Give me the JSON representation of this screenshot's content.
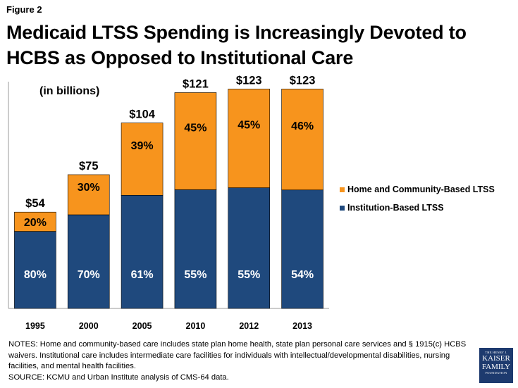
{
  "figure_label": "Figure 2",
  "title": "Medicaid LTSS Spending is Increasingly Devoted to HCBS as Opposed to Institutional Care",
  "colors": {
    "hcbs": "#f7941d",
    "institution": "#1f497d",
    "axis": "#999999"
  },
  "chart_data": {
    "type": "bar",
    "stacked": true,
    "unit_label": "(in billions)",
    "categories": [
      "1995",
      "2000",
      "2005",
      "2010",
      "2012",
      "2013"
    ],
    "totals": [
      54,
      75,
      104,
      121,
      123,
      123
    ],
    "total_labels": [
      "$54",
      "$75",
      "$104",
      "$121",
      "$123",
      "$123"
    ],
    "series": [
      {
        "name": "Institution-Based LTSS",
        "key": "institution",
        "values_pct": [
          80,
          70,
          61,
          55,
          55,
          54
        ],
        "labels": [
          "80%",
          "70%",
          "61%",
          "55%",
          "55%",
          "54%"
        ]
      },
      {
        "name": "Home and Community-Based LTSS",
        "key": "hcbs",
        "values_pct": [
          20,
          30,
          39,
          45,
          45,
          46
        ],
        "labels": [
          "20%",
          "30%",
          "39%",
          "45%",
          "45%",
          "46%"
        ]
      }
    ],
    "ylim": [
      0,
      135
    ],
    "legend_position": "right"
  },
  "legend": {
    "hcbs": "Home and Community-Based LTSS",
    "institution": "Institution-Based LTSS"
  },
  "notes": "NOTES: Home and community-based care includes state plan home health, state plan personal care services and § 1915(c) HCBS waivers. Institutional care includes intermediate care facilities for individuals with intellectual/developmental disabilities, nursing facilities, and mental health facilities.",
  "source": "SOURCE: KCMU and Urban Institute analysis of CMS-64 data.",
  "logo": {
    "line1": "THE HENRY J.",
    "line2": "KAISER",
    "line3": "FAMILY",
    "line4": "FOUNDATION"
  }
}
